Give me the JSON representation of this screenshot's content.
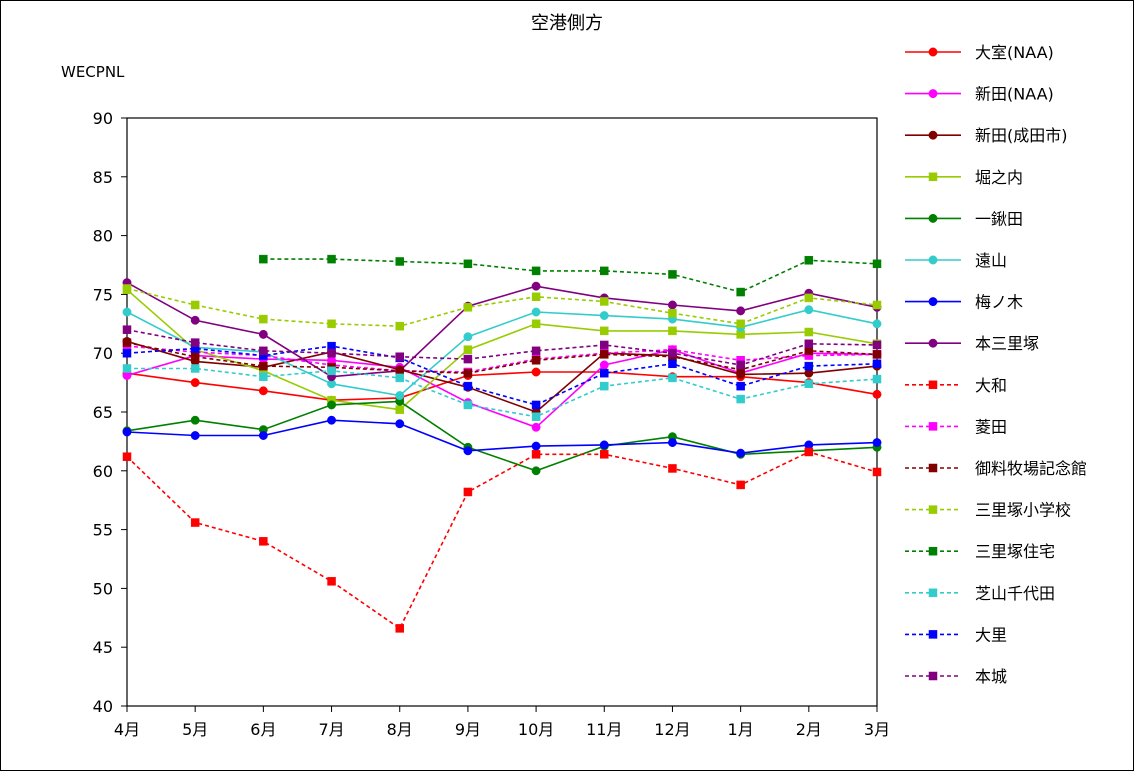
{
  "chart_data": {
    "type": "line",
    "title": "空港側方",
    "ylabel": "WECPNL",
    "xlabel": "",
    "ylim": [
      40,
      90
    ],
    "yticks": [
      40,
      45,
      50,
      55,
      60,
      65,
      70,
      75,
      80,
      85,
      90
    ],
    "categories": [
      "4月",
      "5月",
      "6月",
      "7月",
      "8月",
      "9月",
      "10月",
      "11月",
      "12月",
      "1月",
      "2月",
      "3月"
    ],
    "grid": false,
    "legend_position": "right",
    "series": [
      {
        "name": "大室(NAA)",
        "color": "#ff0000",
        "marker": "circle",
        "dash": false,
        "values": [
          68.3,
          67.5,
          66.8,
          66.0,
          66.2,
          68.1,
          68.4,
          68.4,
          68.0,
          68.0,
          67.5,
          66.5
        ]
      },
      {
        "name": "新田(NAA)",
        "color": "#ff00ff",
        "marker": "circle",
        "dash": false,
        "values": [
          68.1,
          69.8,
          69.5,
          69.4,
          68.8,
          65.8,
          63.7,
          69.0,
          70.3,
          68.3,
          70.0,
          69.9
        ]
      },
      {
        "name": "新田(成田市)",
        "color": "#800000",
        "marker": "circle",
        "dash": false,
        "values": [
          71.0,
          69.3,
          68.8,
          70.1,
          68.6,
          67.1,
          65.0,
          70.0,
          69.8,
          68.2,
          68.3,
          68.9
        ]
      },
      {
        "name": "堀之内",
        "color": "#99cc00",
        "marker": "square",
        "dash": false,
        "values": [
          75.4,
          70.3,
          68.5,
          66.0,
          65.2,
          70.3,
          72.5,
          71.9,
          71.9,
          71.6,
          71.8,
          70.8
        ]
      },
      {
        "name": "一鍬田",
        "color": "#008000",
        "marker": "circle",
        "dash": false,
        "values": [
          63.4,
          64.3,
          63.5,
          65.6,
          65.9,
          62.0,
          60.0,
          62.1,
          62.9,
          61.4,
          61.7,
          62.0
        ]
      },
      {
        "name": "遠山",
        "color": "#33cccc",
        "marker": "circle",
        "dash": false,
        "values": [
          73.5,
          70.5,
          70.1,
          67.4,
          66.4,
          71.4,
          73.5,
          73.2,
          72.9,
          72.2,
          73.7,
          72.5
        ]
      },
      {
        "name": "梅ノ木",
        "color": "#0000ff",
        "marker": "circle",
        "dash": false,
        "values": [
          63.3,
          63.0,
          63.0,
          64.3,
          64.0,
          61.7,
          62.1,
          62.2,
          62.4,
          61.5,
          62.2,
          62.4
        ]
      },
      {
        "name": "本三里塚",
        "color": "#800080",
        "marker": "circle",
        "dash": false,
        "values": [
          76.0,
          72.8,
          71.6,
          68.0,
          68.5,
          74.0,
          75.7,
          74.7,
          74.1,
          73.6,
          75.1,
          73.9
        ]
      },
      {
        "name": "大和",
        "color": "#ff0000",
        "marker": "square",
        "dash": true,
        "values": [
          61.2,
          55.6,
          54.0,
          50.6,
          46.6,
          58.2,
          61.4,
          61.4,
          60.2,
          58.8,
          61.6,
          59.9
        ]
      },
      {
        "name": "菱田",
        "color": "#ff00ff",
        "marker": "square",
        "dash": true,
        "values": [
          70.6,
          70.1,
          69.8,
          69.0,
          68.5,
          68.4,
          69.5,
          70.0,
          70.3,
          69.4,
          69.8,
          69.9
        ]
      },
      {
        "name": "御料牧場記念館",
        "color": "#800000",
        "marker": "square",
        "dash": true,
        "values": [
          70.9,
          69.7,
          68.9,
          68.8,
          68.5,
          68.3,
          69.4,
          69.9,
          69.7,
          68.6,
          70.2,
          69.9
        ]
      },
      {
        "name": "三里塚小学校",
        "color": "#99cc00",
        "marker": "square",
        "dash": true,
        "values": [
          75.5,
          74.1,
          72.9,
          72.5,
          72.3,
          73.9,
          74.8,
          74.4,
          73.4,
          72.5,
          74.7,
          74.1
        ]
      },
      {
        "name": "三里塚住宅",
        "color": "#008000",
        "marker": "square",
        "dash": true,
        "values": [
          null,
          null,
          78.0,
          78.0,
          77.8,
          77.6,
          77.0,
          77.0,
          76.7,
          75.2,
          77.9,
          77.6
        ]
      },
      {
        "name": "芝山千代田",
        "color": "#33cccc",
        "marker": "square",
        "dash": true,
        "values": [
          68.7,
          68.7,
          68.0,
          68.5,
          67.9,
          65.6,
          64.6,
          67.2,
          67.9,
          66.1,
          67.4,
          67.8
        ]
      },
      {
        "name": "大里",
        "color": "#0000ff",
        "marker": "square",
        "dash": true,
        "values": [
          70.0,
          70.4,
          69.8,
          70.6,
          69.6,
          67.2,
          65.6,
          68.3,
          69.1,
          67.2,
          68.9,
          69.1
        ]
      },
      {
        "name": "本城",
        "color": "#800080",
        "marker": "square",
        "dash": true,
        "values": [
          72.0,
          70.9,
          70.2,
          70.0,
          69.7,
          69.5,
          70.2,
          70.7,
          70.0,
          69.0,
          70.8,
          70.7
        ]
      }
    ]
  }
}
